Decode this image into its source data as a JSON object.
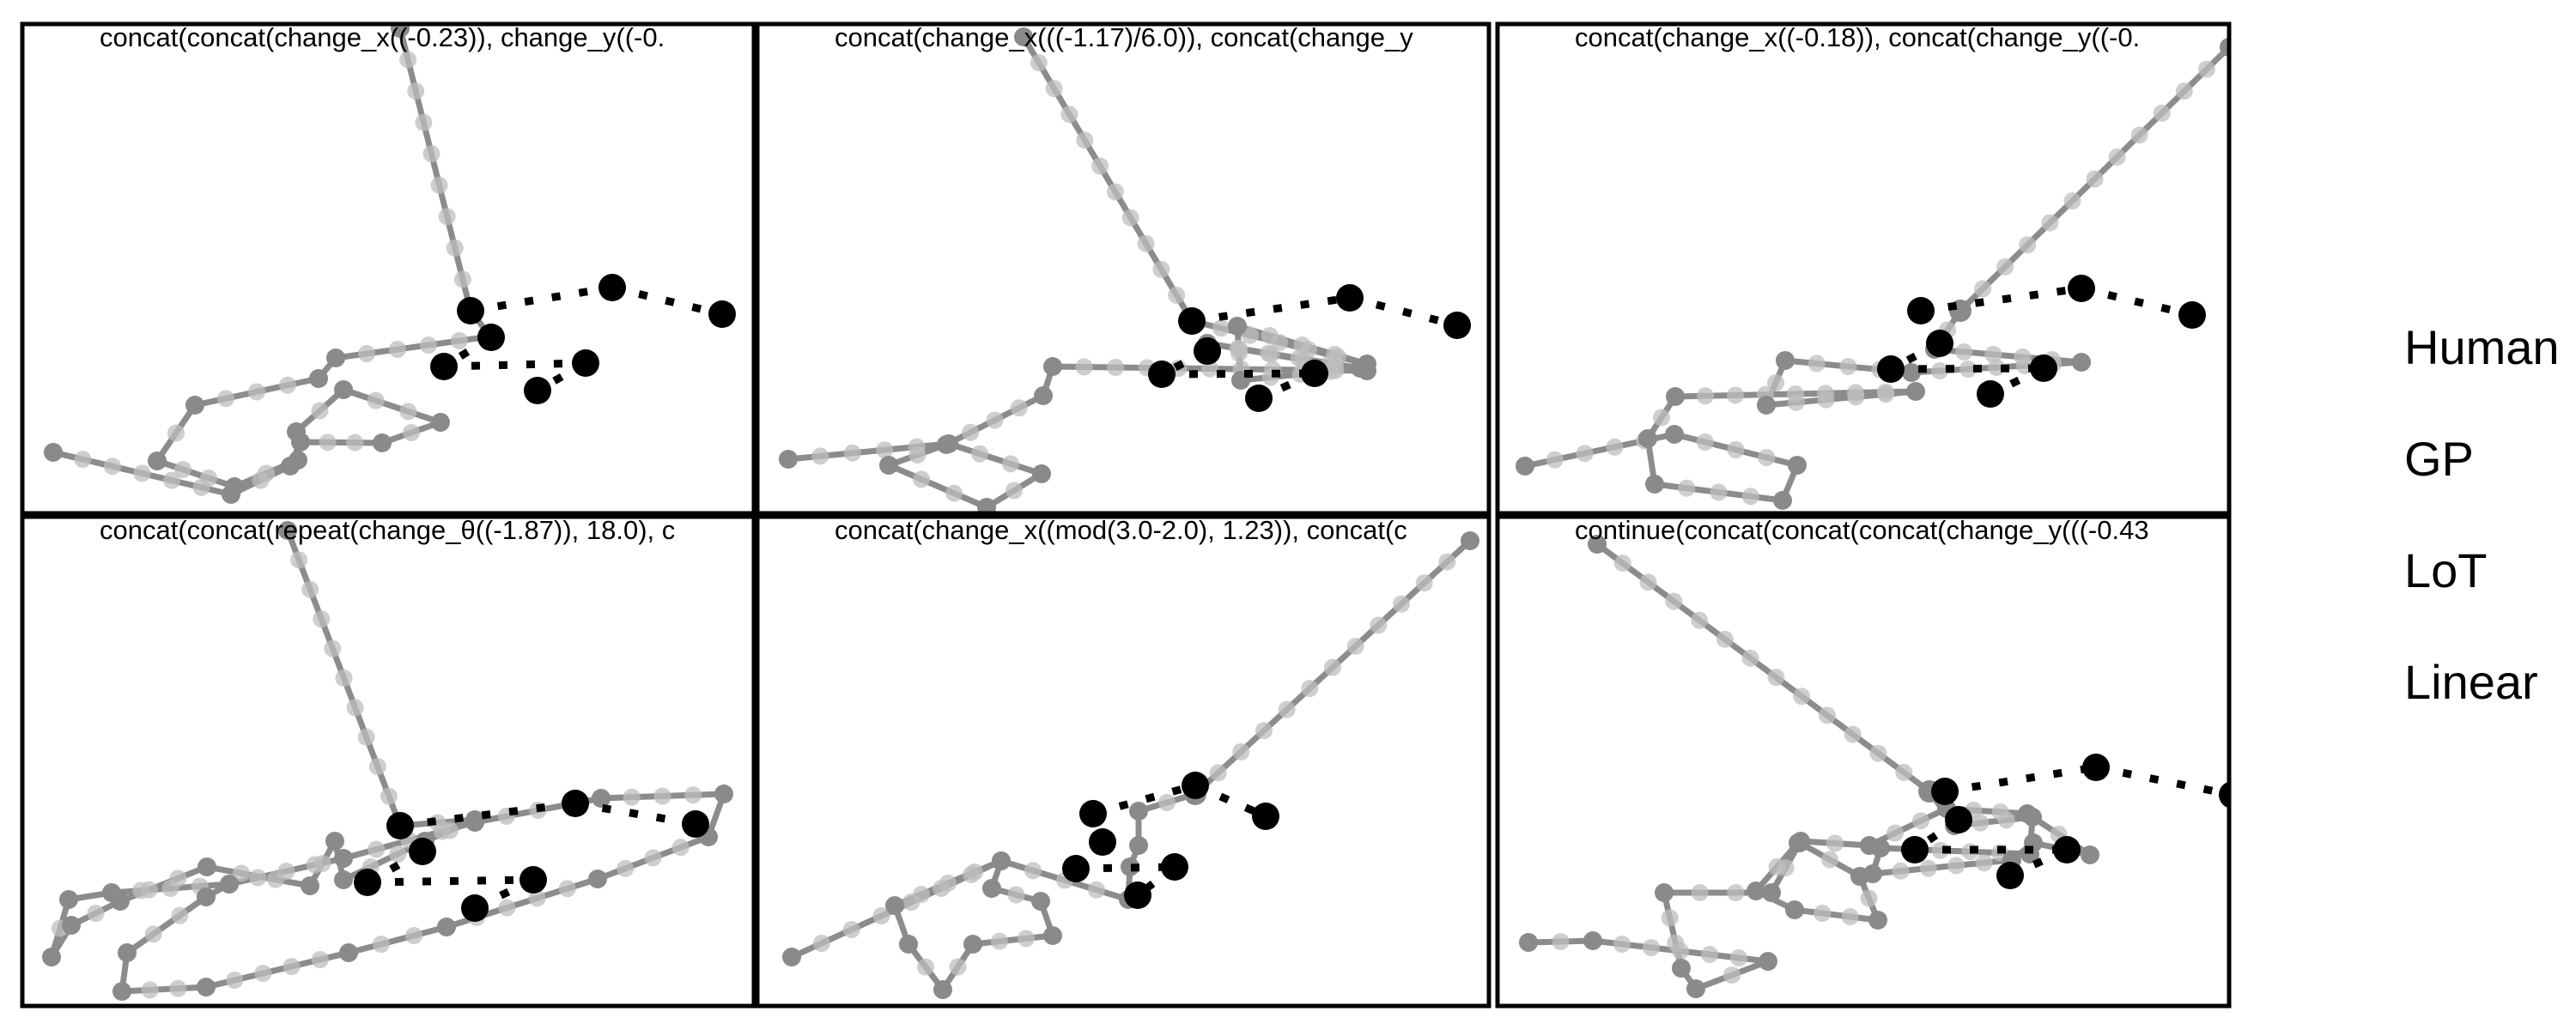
{
  "legend": {
    "human": "Human",
    "gp": "GP",
    "lot": "LoT",
    "linear": "Linear"
  },
  "panels": [
    {
      "title": "concat(concat(change_x((-0.23)), change_y((-0.",
      "observed": [
        [
          548,
          362
        ],
        [
          713,
          335
        ],
        [
          841,
          366
        ],
        [
          572,
          393
        ],
        [
          517,
          427
        ],
        [
          682,
          423
        ],
        [
          626,
          455
        ]
      ],
      "dotted_segments": [
        [
          0,
          1
        ],
        [
          1,
          2
        ],
        [
          3,
          4
        ],
        [
          4,
          5
        ],
        [
          5,
          6
        ]
      ],
      "program": [
        [
          466,
          33
        ],
        [
          548,
          362
        ],
        [
          571,
          392
        ],
        [
          391,
          417
        ],
        [
          371,
          441
        ],
        [
          227,
          472
        ],
        [
          183,
          537
        ],
        [
          273,
          567
        ],
        [
          347,
          536
        ],
        [
          345,
          503
        ],
        [
          400,
          454
        ],
        [
          513,
          492
        ],
        [
          445,
          516
        ],
        [
          350,
          515
        ],
        [
          338,
          543
        ],
        [
          269,
          576
        ],
        [
          62,
          527
        ]
      ]
    },
    {
      "title": "concat(change_x(((-1.17)/6.0)), concat(change_y",
      "observed": [
        [
          1388,
          374
        ],
        [
          1572,
          347
        ],
        [
          1697,
          379
        ],
        [
          1406,
          409
        ],
        [
          1353,
          436
        ],
        [
          1531,
          435
        ],
        [
          1466,
          464
        ]
      ],
      "dotted_segments": [
        [
          0,
          1
        ],
        [
          1,
          2
        ],
        [
          3,
          4
        ],
        [
          4,
          5
        ],
        [
          5,
          6
        ]
      ],
      "program": [
        [
          1192,
          43
        ],
        [
          1388,
          374
        ],
        [
          1592,
          424
        ],
        [
          1441,
          380
        ],
        [
          1445,
          443
        ],
        [
          1584,
          429
        ],
        [
          1406,
          400
        ],
        [
          1592,
          432
        ],
        [
          1226,
          427
        ],
        [
          1215,
          461
        ],
        [
          1102,
          518
        ],
        [
          1035,
          542
        ],
        [
          1149,
          591
        ],
        [
          1213,
          552
        ],
        [
          1105,
          517
        ],
        [
          918,
          535
        ]
      ]
    },
    {
      "title": "concat(change_x((-0.18)), concat(change_y((-0.",
      "observed": [
        [
          2237,
          362
        ],
        [
          2424,
          336
        ],
        [
          2553,
          367
        ],
        [
          2259,
          400
        ],
        [
          2202,
          430
        ],
        [
          2380,
          429
        ],
        [
          2318,
          459
        ]
      ],
      "dotted_segments": [
        [
          0,
          1
        ],
        [
          1,
          2
        ],
        [
          3,
          4
        ],
        [
          4,
          5
        ],
        [
          5,
          6
        ]
      ],
      "program": [
        [
          2596,
          55
        ],
        [
          2283,
          362
        ],
        [
          2253,
          407
        ],
        [
          2424,
          422
        ],
        [
          2226,
          434
        ],
        [
          2079,
          420
        ],
        [
          2057,
          472
        ],
        [
          2231,
          456
        ],
        [
          1951,
          462
        ],
        [
          1919,
          511
        ],
        [
          1927,
          564
        ],
        [
          2076,
          583
        ],
        [
          2093,
          542
        ],
        [
          1950,
          506
        ],
        [
          1776,
          543
        ]
      ]
    },
    {
      "title": "concat(concat(repeat(change_θ((-1.87)), 18.0), c",
      "observed": [
        [
          466,
          962
        ],
        [
          670,
          936
        ],
        [
          810,
          960
        ],
        [
          492,
          992
        ],
        [
          428,
          1028
        ],
        [
          621,
          1025
        ],
        [
          553,
          1058
        ]
      ],
      "dotted_segments": [
        [
          0,
          1
        ],
        [
          1,
          2
        ],
        [
          3,
          4
        ],
        [
          4,
          5
        ],
        [
          5,
          6
        ]
      ],
      "program": [
        [
          335,
          618
        ],
        [
          466,
          962
        ],
        [
          553,
          955
        ],
        [
          495,
          980
        ],
        [
          400,
          1025
        ],
        [
          390,
          980
        ],
        [
          361,
          1032
        ],
        [
          241,
          1010
        ],
        [
          140,
          1050
        ],
        [
          83,
          1078
        ],
        [
          60,
          1115
        ],
        [
          80,
          1048
        ],
        [
          130,
          1040
        ],
        [
          267,
          1030
        ],
        [
          400,
          1000
        ],
        [
          553,
          958
        ],
        [
          700,
          930
        ],
        [
          843,
          925
        ],
        [
          825,
          975
        ],
        [
          696,
          1024
        ],
        [
          520,
          1080
        ],
        [
          406,
          1110
        ],
        [
          240,
          1150
        ],
        [
          142,
          1155
        ],
        [
          148,
          1110
        ],
        [
          240,
          1045
        ],
        [
          267,
          1030
        ]
      ]
    },
    {
      "title": "concat(change_x((mod(3.0-2.0), 1.23)), concat(c",
      "observed": [
        [
          1273,
          948
        ],
        [
          1392,
          915
        ],
        [
          1474,
          951
        ],
        [
          1284,
          981
        ],
        [
          1253,
          1012
        ],
        [
          1368,
          1010
        ],
        [
          1325,
          1043
        ]
      ],
      "dotted_segments": [
        [
          0,
          1
        ],
        [
          1,
          2
        ],
        [
          3,
          4
        ],
        [
          4,
          5
        ],
        [
          5,
          6
        ]
      ],
      "program": [
        [
          1712,
          630
        ],
        [
          1392,
          925
        ],
        [
          1326,
          945
        ],
        [
          1326,
          985
        ],
        [
          1316,
          1010
        ],
        [
          1314,
          1048
        ],
        [
          1166,
          1003
        ],
        [
          1042,
          1055
        ],
        [
          1058,
          1100
        ],
        [
          1098,
          1153
        ],
        [
          1133,
          1100
        ],
        [
          1226,
          1090
        ],
        [
          1212,
          1050
        ],
        [
          1155,
          1035
        ],
        [
          1166,
          1003
        ],
        [
          922,
          1115
        ]
      ]
    },
    {
      "title": "continue(concat(concat(concat(change_y(((-0.43",
      "observed": [
        [
          2265,
          922
        ],
        [
          2441,
          894
        ],
        [
          2600,
          926
        ],
        [
          2281,
          955
        ],
        [
          2230,
          990
        ],
        [
          2407,
          990
        ],
        [
          2341,
          1020
        ]
      ],
      "dotted_segments": [
        [
          0,
          1
        ],
        [
          1,
          2
        ],
        [
          3,
          4
        ],
        [
          4,
          5
        ],
        [
          5,
          6
        ]
      ],
      "program": [
        [
          1860,
          634
        ],
        [
          2247,
          922
        ],
        [
          2276,
          962
        ],
        [
          2367,
          952
        ],
        [
          2364,
          995
        ],
        [
          2190,
          988
        ],
        [
          2181,
          1018
        ],
        [
          2343,
          1002
        ],
        [
          2368,
          982
        ],
        [
          2434,
          996
        ],
        [
          2361,
          948
        ],
        [
          2267,
          942
        ],
        [
          2177,
          985
        ],
        [
          2097,
          980
        ],
        [
          2094,
          982
        ],
        [
          2045,
          1038
        ],
        [
          2090,
          1060
        ],
        [
          2187,
          1072
        ],
        [
          2166,
          1021
        ],
        [
          2096,
          982
        ],
        [
          2063,
          1040
        ],
        [
          1938,
          1040
        ],
        [
          1958,
          1128
        ],
        [
          1975,
          1152
        ],
        [
          2059,
          1120
        ],
        [
          1855,
          1096
        ],
        [
          1780,
          1098
        ]
      ]
    }
  ]
}
